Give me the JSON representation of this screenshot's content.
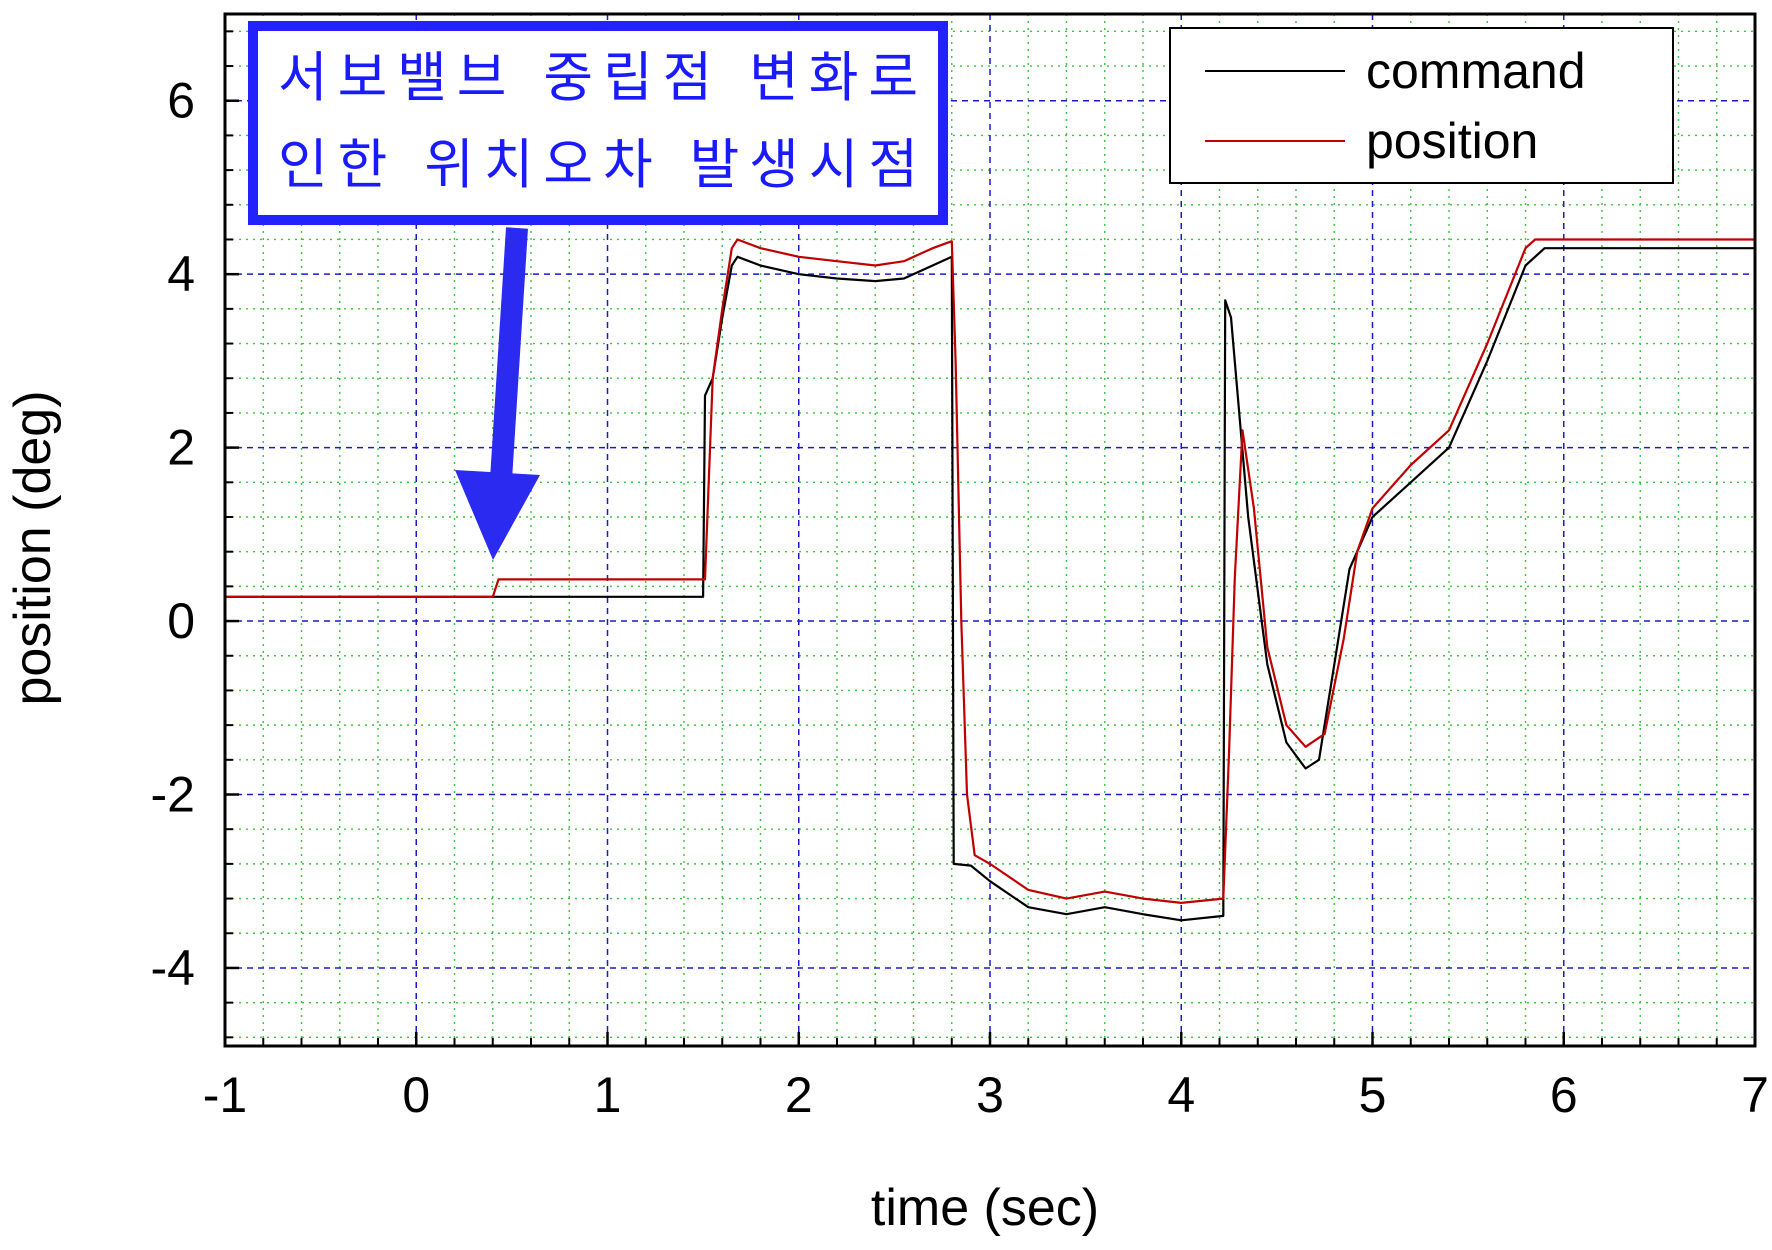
{
  "chart_data": {
    "type": "line",
    "xlabel": "time (sec)",
    "ylabel": "position (deg)",
    "xlim": [
      -1,
      7
    ],
    "ylim": [
      -4.9,
      7.0
    ],
    "x_ticks": [
      "-1",
      "0",
      "1",
      "2",
      "3",
      "4",
      "5",
      "6",
      "7"
    ],
    "y_ticks": [
      "-4",
      "-2",
      "0",
      "2",
      "4",
      "6"
    ],
    "grid": true,
    "legend_position": "top-right",
    "annotation": {
      "lines": [
        "서보밸브 중립점 변화로",
        "인한 위치오차 발생시점"
      ],
      "points_to": {
        "x": 0.4,
        "y": 0.28
      }
    },
    "series": [
      {
        "name": "command",
        "color": "#000000",
        "points": [
          [
            -1,
            0.28
          ],
          [
            1.5,
            0.28
          ],
          [
            1.51,
            2.6
          ],
          [
            1.55,
            2.8
          ],
          [
            1.6,
            3.5
          ],
          [
            1.65,
            4.1
          ],
          [
            1.68,
            4.2
          ],
          [
            1.8,
            4.1
          ],
          [
            2.0,
            4.0
          ],
          [
            2.2,
            3.95
          ],
          [
            2.4,
            3.92
          ],
          [
            2.55,
            3.95
          ],
          [
            2.7,
            4.1
          ],
          [
            2.8,
            4.2
          ],
          [
            2.81,
            -2.8
          ],
          [
            2.9,
            -2.82
          ],
          [
            3.0,
            -3.0
          ],
          [
            3.2,
            -3.3
          ],
          [
            3.4,
            -3.38
          ],
          [
            3.6,
            -3.3
          ],
          [
            3.8,
            -3.38
          ],
          [
            4.0,
            -3.45
          ],
          [
            4.22,
            -3.4
          ],
          [
            4.23,
            3.7
          ],
          [
            4.26,
            3.5
          ],
          [
            4.35,
            1.2
          ],
          [
            4.45,
            -0.5
          ],
          [
            4.55,
            -1.4
          ],
          [
            4.65,
            -1.7
          ],
          [
            4.72,
            -1.6
          ],
          [
            4.8,
            -0.5
          ],
          [
            4.88,
            0.6
          ],
          [
            5.0,
            1.2
          ],
          [
            5.2,
            1.6
          ],
          [
            5.4,
            2.0
          ],
          [
            5.6,
            3.0
          ],
          [
            5.8,
            4.1
          ],
          [
            5.9,
            4.3
          ],
          [
            7.0,
            4.3
          ]
        ]
      },
      {
        "name": "position",
        "color": "#c00000",
        "points": [
          [
            -1,
            0.28
          ],
          [
            0.4,
            0.28
          ],
          [
            0.43,
            0.48
          ],
          [
            1.51,
            0.48
          ],
          [
            1.55,
            2.8
          ],
          [
            1.6,
            3.6
          ],
          [
            1.65,
            4.3
          ],
          [
            1.68,
            4.4
          ],
          [
            1.8,
            4.3
          ],
          [
            2.0,
            4.2
          ],
          [
            2.2,
            4.15
          ],
          [
            2.4,
            4.1
          ],
          [
            2.55,
            4.15
          ],
          [
            2.7,
            4.3
          ],
          [
            2.8,
            4.38
          ],
          [
            2.82,
            3.0
          ],
          [
            2.85,
            0.0
          ],
          [
            2.88,
            -2.0
          ],
          [
            2.92,
            -2.7
          ],
          [
            3.0,
            -2.8
          ],
          [
            3.2,
            -3.1
          ],
          [
            3.4,
            -3.2
          ],
          [
            3.6,
            -3.12
          ],
          [
            3.8,
            -3.2
          ],
          [
            4.0,
            -3.25
          ],
          [
            4.22,
            -3.2
          ],
          [
            4.25,
            -1.5
          ],
          [
            4.28,
            0.5
          ],
          [
            4.32,
            2.2
          ],
          [
            4.38,
            1.3
          ],
          [
            4.45,
            -0.3
          ],
          [
            4.55,
            -1.2
          ],
          [
            4.65,
            -1.45
          ],
          [
            4.75,
            -1.3
          ],
          [
            4.85,
            -0.2
          ],
          [
            4.92,
            0.8
          ],
          [
            5.0,
            1.3
          ],
          [
            5.2,
            1.8
          ],
          [
            5.4,
            2.2
          ],
          [
            5.6,
            3.2
          ],
          [
            5.8,
            4.3
          ],
          [
            5.85,
            4.4
          ],
          [
            7.0,
            4.4
          ]
        ]
      }
    ]
  }
}
